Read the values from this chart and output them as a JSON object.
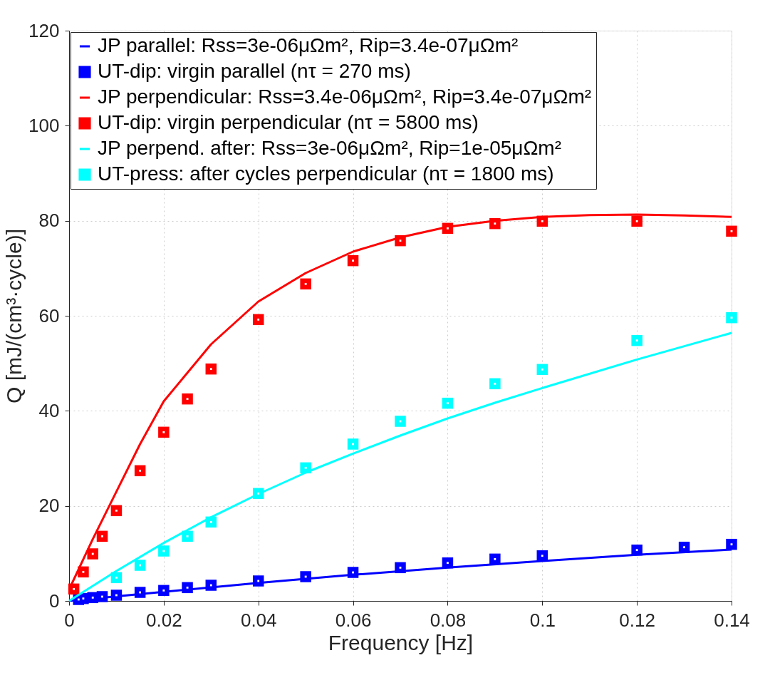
{
  "chart_data": {
    "type": "line",
    "xlabel": "Frequency [Hz]",
    "ylabel": "Q [mJ/(cm³·cycle)]",
    "xlim": [
      0,
      0.14
    ],
    "ylim": [
      0,
      120
    ],
    "xticks": [
      0,
      0.02,
      0.04,
      0.06,
      0.08,
      0.1,
      0.12,
      0.14
    ],
    "yticks": [
      0,
      20,
      40,
      60,
      80,
      100,
      120
    ],
    "grid": true,
    "legend": "top left",
    "series": [
      {
        "name": "JP parallel: Rss=3e-06μΩm², Rip=3.4e-07μΩm²",
        "color": "#0000ff",
        "line_style": "solid",
        "marker": "none",
        "x": [
          0,
          0.02,
          0.04,
          0.06,
          0.08,
          0.1,
          0.12,
          0.14
        ],
        "values": [
          0,
          1.9,
          3.8,
          5.5,
          7.0,
          8.4,
          9.7,
          10.8
        ]
      },
      {
        "name": "UT-dip: virgin parallel (nτ = 270 ms)",
        "type": "scatter",
        "color": "#0000ff",
        "marker": "square",
        "x": [
          0.002,
          0.003,
          0.005,
          0.007,
          0.01,
          0.015,
          0.02,
          0.025,
          0.03,
          0.04,
          0.05,
          0.06,
          0.07,
          0.08,
          0.09,
          0.1,
          0.12,
          0.13,
          0.14
        ],
        "values": [
          0.3,
          0.5,
          0.7,
          0.9,
          1.2,
          1.8,
          2.2,
          2.8,
          3.3,
          4.2,
          5.1,
          6.0,
          7.0,
          8.0,
          8.8,
          9.5,
          10.7,
          11.3,
          11.9
        ]
      },
      {
        "name": "JP perpendicular: Rss=3.4e-06μΩm², Rip=3.4e-07μΩm²",
        "color": "#ff0000",
        "line_style": "solid",
        "marker": "none",
        "x": [
          0,
          0.005,
          0.01,
          0.015,
          0.02,
          0.03,
          0.04,
          0.05,
          0.06,
          0.07,
          0.08,
          0.09,
          0.1,
          0.11,
          0.12,
          0.13,
          0.14
        ],
        "values": [
          2.4,
          13,
          23,
          33,
          42,
          54,
          63,
          69,
          73.5,
          76.5,
          78.7,
          80,
          80.8,
          81.2,
          81.3,
          81.1,
          80.8
        ]
      },
      {
        "name": "UT-dip: virgin perpendicular (nτ = 5800 ms)",
        "type": "scatter",
        "color": "#ff0000",
        "marker": "square",
        "x": [
          0.001,
          0.003,
          0.005,
          0.007,
          0.01,
          0.015,
          0.02,
          0.025,
          0.03,
          0.04,
          0.05,
          0.06,
          0.07,
          0.08,
          0.09,
          0.1,
          0.12,
          0.14
        ],
        "values": [
          2.5,
          6.1,
          9.9,
          13.6,
          19.0,
          27.4,
          35.5,
          42.5,
          48.8,
          59.2,
          66.7,
          71.6,
          75.8,
          78.4,
          79.4,
          79.9,
          79.9,
          77.8
        ]
      },
      {
        "name": "JP perpend. after: Rss=3e-06μΩm², Rip=1e-05μΩm²",
        "color": "#00ffff",
        "line_style": "solid",
        "marker": "none",
        "x": [
          0,
          0.01,
          0.02,
          0.03,
          0.04,
          0.05,
          0.06,
          0.07,
          0.08,
          0.09,
          0.1,
          0.12,
          0.14
        ],
        "values": [
          0,
          6.3,
          12.2,
          17.6,
          22.5,
          27,
          31,
          34.8,
          38.4,
          41.7,
          44.8,
          50.8,
          56.4
        ]
      },
      {
        "name": "UT-press: after cycles perpendicular (nτ = 1800 ms)",
        "type": "scatter",
        "color": "#00ffff",
        "marker": "square",
        "x": [
          0.01,
          0.015,
          0.02,
          0.025,
          0.03,
          0.04,
          0.05,
          0.06,
          0.07,
          0.08,
          0.09,
          0.1,
          0.12,
          0.14
        ],
        "values": [
          4.9,
          7.5,
          10.5,
          13.6,
          16.6,
          22.6,
          28.0,
          33.0,
          37.8,
          41.6,
          45.7,
          48.7,
          54.8,
          59.6
        ]
      }
    ]
  }
}
